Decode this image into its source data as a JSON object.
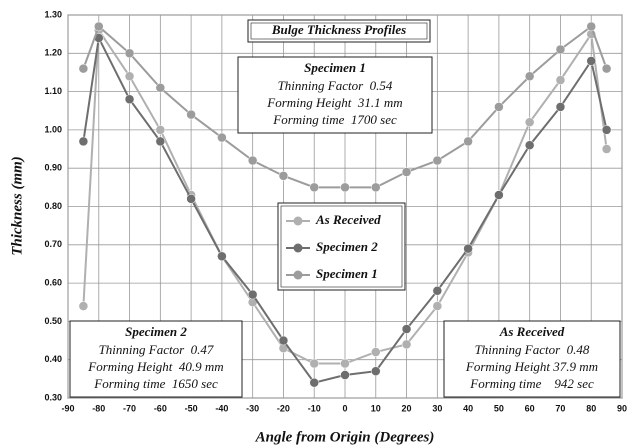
{
  "chart_data": {
    "type": "line",
    "title": "Bulge Thickness Profiles",
    "x_label": "Angle from Origin (Degrees)",
    "y_label": "Thickness (mm)",
    "x": [
      -85,
      -80,
      -70,
      -60,
      -50,
      -40,
      -30,
      -20,
      -10,
      0,
      10,
      20,
      30,
      40,
      50,
      60,
      70,
      80,
      85
    ],
    "series": [
      {
        "name": "As Received",
        "color": "#b0b0b0",
        "values": [
          0.54,
          1.26,
          1.14,
          1.0,
          0.83,
          0.67,
          0.55,
          0.43,
          0.39,
          0.39,
          0.42,
          0.44,
          0.54,
          0.68,
          0.83,
          1.02,
          1.13,
          1.25,
          0.95
        ]
      },
      {
        "name": "Specimen 2",
        "color": "#6e6e6e",
        "values": [
          0.97,
          1.24,
          1.08,
          0.97,
          0.82,
          0.67,
          0.57,
          0.45,
          0.34,
          0.36,
          0.37,
          0.48,
          0.58,
          0.69,
          0.83,
          0.96,
          1.06,
          1.18,
          1.0
        ]
      },
      {
        "name": "Specimen 1",
        "color": "#9c9c9c",
        "values": [
          1.16,
          1.27,
          1.2,
          1.11,
          1.04,
          0.98,
          0.92,
          0.88,
          0.85,
          0.85,
          0.85,
          0.89,
          0.92,
          0.97,
          1.06,
          1.14,
          1.21,
          1.27,
          1.16
        ]
      }
    ],
    "xlim": [
      -90,
      90
    ],
    "xticks": [
      -90,
      -80,
      -70,
      -60,
      -50,
      -40,
      -30,
      -20,
      -10,
      0,
      10,
      20,
      30,
      40,
      50,
      60,
      70,
      80,
      90
    ],
    "ylim": [
      0.3,
      1.3
    ],
    "yticks": [
      {
        "value": 0.3,
        "label": "0.30"
      },
      {
        "value": 0.4,
        "label": "0.40"
      },
      {
        "value": 0.5,
        "label": "0.50"
      },
      {
        "value": 0.6,
        "label": "0.60"
      },
      {
        "value": 0.7,
        "label": "0.70"
      },
      {
        "value": 0.8,
        "label": "0.80"
      },
      {
        "value": 0.9,
        "label": "0.90"
      },
      {
        "value": 1.0,
        "label": "1.00"
      },
      {
        "value": 1.1,
        "label": "1.10"
      },
      {
        "value": 1.2,
        "label": "1.20"
      },
      {
        "value": 1.3,
        "label": "1.30"
      }
    ],
    "grid": true,
    "annotations": [
      {
        "heading": "Specimen 1",
        "lines": [
          "Thinning Factor  0.54",
          "Forming Height  31.1 mm",
          "Forming time  1700 sec"
        ]
      },
      {
        "heading": "Specimen 2",
        "lines": [
          "Thinning Factor  0.47",
          "Forming Height  40.9 mm",
          "Forming time  1650 sec"
        ]
      },
      {
        "heading": "As Received",
        "lines": [
          "Thinning Factor  0.48",
          "Forming Height 37.9 mm",
          "Forming time    942 sec"
        ]
      }
    ]
  }
}
